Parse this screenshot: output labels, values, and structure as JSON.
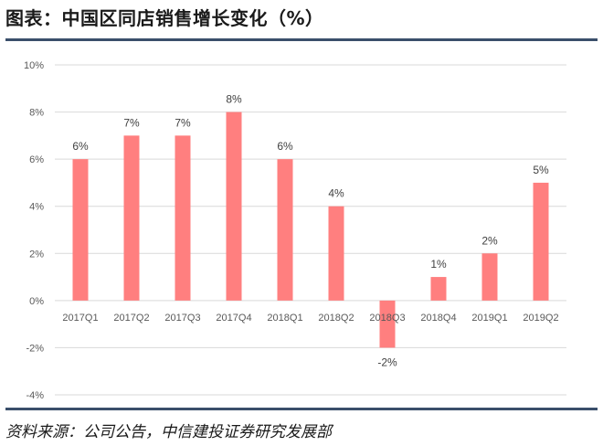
{
  "header": {
    "title": "图表：中国区同店销售增长变化（%）"
  },
  "footer": {
    "source": "资料来源：公司公告，中信建投证券研究发展部"
  },
  "colors": {
    "bar": "#ff7f7f",
    "rule": "#3a4f6b",
    "grid": "#d9d9d9"
  },
  "chart_data": {
    "type": "bar",
    "title": "图表：中国区同店销售增长变化（%）",
    "xlabel": "",
    "ylabel": "",
    "categories": [
      "2017Q1",
      "2017Q2",
      "2017Q3",
      "2017Q4",
      "2018Q1",
      "2018Q2",
      "2018Q3",
      "2018Q4",
      "2019Q1",
      "2019Q2"
    ],
    "values": [
      6,
      7,
      7,
      8,
      6,
      4,
      -2,
      1,
      2,
      5
    ],
    "data_labels": [
      "6%",
      "7%",
      "7%",
      "8%",
      "6%",
      "4%",
      "-2%",
      "1%",
      "2%",
      "5%"
    ],
    "y_ticks": [
      -4,
      -2,
      0,
      2,
      4,
      6,
      8,
      10
    ],
    "y_tick_labels": [
      "-4%",
      "-2%",
      "0%",
      "2%",
      "4%",
      "6%",
      "8%",
      "10%"
    ],
    "ylim": [
      -4,
      10
    ],
    "grid": true,
    "legend": "none"
  }
}
